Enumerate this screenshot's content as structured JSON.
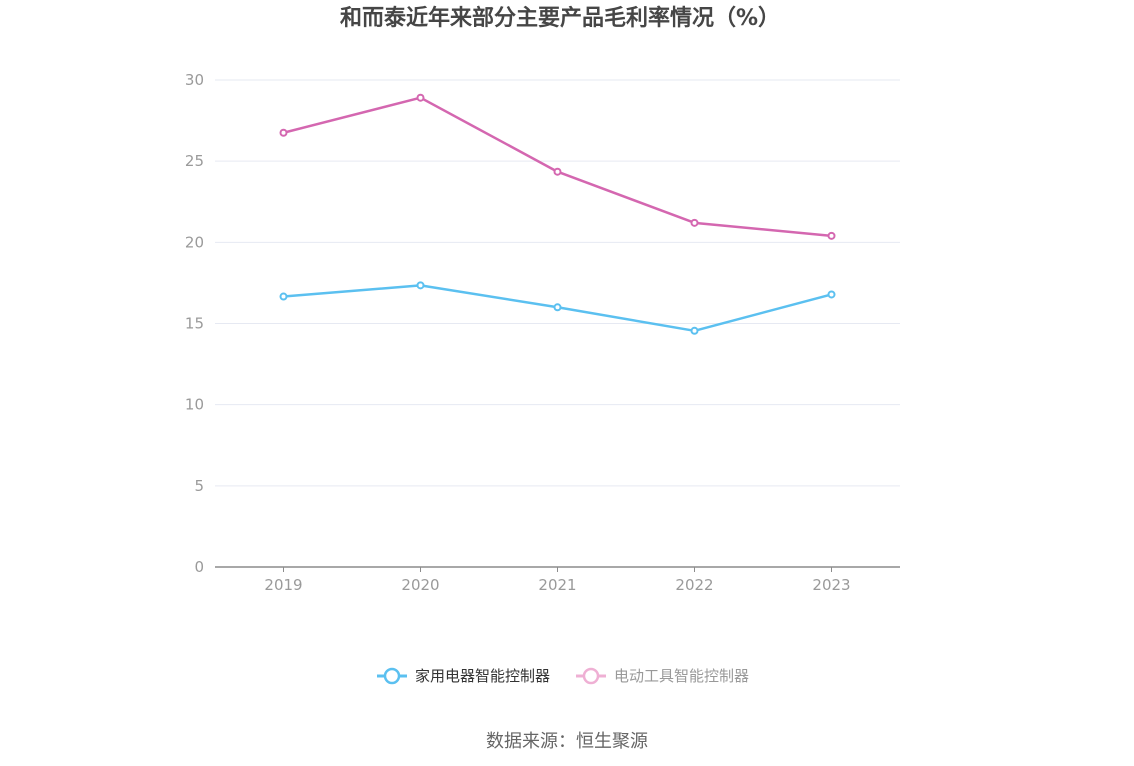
{
  "colors": {
    "series_0": "#5bc0f0",
    "series_1": "#d467b0",
    "series_1_legend": "#efb0d4",
    "grid": "#e6e9f2",
    "axis": "#8c8c8c",
    "tick_text": "#9a9a9a",
    "title": "#464646",
    "legend_active_text": "#333333",
    "legend_inactive_text": "#999999"
  },
  "chart_data": {
    "type": "line",
    "title": "和而泰近年来部分主要产品毛利率情况（%）",
    "xlabel": "",
    "ylabel": "",
    "categories": [
      "2019",
      "2020",
      "2021",
      "2022",
      "2023"
    ],
    "series": [
      {
        "name": "家用电器智能控制器",
        "values": [
          16.66,
          17.35,
          16.0,
          14.55,
          16.79
        ]
      },
      {
        "name": "电动工具智能控制器",
        "values": [
          26.75,
          28.91,
          24.35,
          21.2,
          20.4
        ]
      }
    ],
    "ylim": [
      0,
      30
    ],
    "yticks": [
      "0",
      "5",
      "10",
      "15",
      "20",
      "25",
      "30"
    ],
    "grid": true,
    "legend_position": "bottom-center"
  },
  "source": "数据来源：恒生聚源"
}
